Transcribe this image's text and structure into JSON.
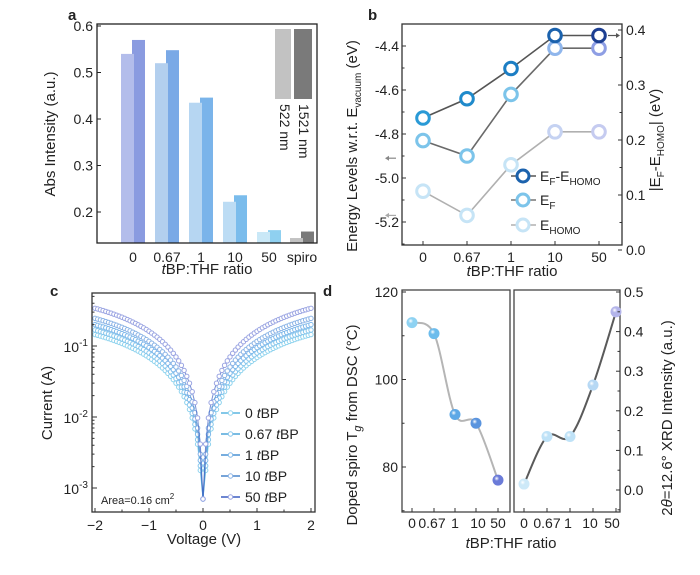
{
  "panels": {
    "a": {
      "label": "a"
    },
    "b": {
      "label": "b"
    },
    "c": {
      "label": "c"
    },
    "d": {
      "label": "d"
    }
  },
  "chart_data": [
    {
      "id": "a",
      "type": "bar",
      "title": "",
      "xlabel_italic": "t",
      "xlabel_rest": "BP:THF ratio",
      "ylabel": "Abs Intensity (a.u.)",
      "categories": [
        "0",
        "0.67",
        "1",
        "10",
        "50",
        "spiro"
      ],
      "ylim": [
        0.13,
        0.6
      ],
      "yticks": [
        "0.2",
        "0.3",
        "0.4",
        "0.5",
        "0.6"
      ],
      "ytick_values": [
        0.2,
        0.3,
        0.4,
        0.5,
        0.6
      ],
      "series": [
        {
          "name": "522 nm",
          "values": [
            0.54,
            0.52,
            0.435,
            0.222,
            0.157,
            0.144
          ],
          "colors": [
            "#b3bdeb",
            "#b3cfee",
            "#b6d6f2",
            "#bcdcf4",
            "#c9e8f7",
            "#c2c2c2"
          ]
        },
        {
          "name": "1521 nm",
          "values": [
            0.57,
            0.548,
            0.446,
            0.236,
            0.161,
            0.158
          ],
          "colors": [
            "#8a9be0",
            "#7aa9e6",
            "#7ab4ea",
            "#7abcec",
            "#8fd0f0",
            "#7a7a7a"
          ]
        }
      ],
      "legend": {
        "placement": "top-right",
        "items": [
          "522 nm",
          "1521 nm"
        ],
        "colors": [
          "#c2c2c2",
          "#7a7a7a"
        ]
      }
    },
    {
      "id": "b",
      "type": "line",
      "xlabel_italic": "t",
      "xlabel_rest": "BP:THF ratio",
      "ylabel_left_main": "Energy Levels w.r.t. E",
      "ylabel_left_sub": "vacuum",
      "ylabel_left_unit": " (eV)",
      "ylabel_right": "|E_F-E_HOMO| (eV)",
      "ylabel_right_parts": {
        "bar": "|",
        "e1": "E",
        "s1": "F",
        "dash": "-E",
        "s2": "HOMO",
        "unit": "| (eV)"
      },
      "categories": [
        "0",
        "0.67",
        "1",
        "10",
        "50"
      ],
      "ylim_left": [
        -5.3,
        -4.3
      ],
      "yticks_left": [
        "-4.4",
        "-4.6",
        "-4.8",
        "-5.0",
        "-5.2"
      ],
      "ytick_left_values": [
        -4.4,
        -4.6,
        -4.8,
        -5.0,
        -5.2
      ],
      "ylim_right": [
        0.0,
        0.4
      ],
      "yticks_right": [
        "0.0",
        "0.1",
        "0.2",
        "0.3",
        "0.4"
      ],
      "ytick_right_values": [
        0.0,
        0.1,
        0.2,
        0.3,
        0.4
      ],
      "series": [
        {
          "name": "E_F-E_HOMO",
          "legend_main": "E",
          "legend_sub1": "F",
          "legend_mid": "-E",
          "legend_sub2": "HOMO",
          "axis": "right",
          "values": [
            0.24,
            0.275,
            0.33,
            0.39,
            0.39
          ],
          "line_color": "#555555",
          "marker_colors": [
            "#2a9ad6",
            "#1f8acb",
            "#1c7ec4",
            "#1b62ad",
            "#1d3f92"
          ]
        },
        {
          "name": "E_F",
          "legend_main": "E",
          "legend_sub1": "F",
          "axis": "left",
          "values": [
            -4.83,
            -4.9,
            -4.62,
            -4.41,
            -4.41
          ],
          "line_color": "#6a6a6a",
          "marker_colors": [
            "#7cc4ea",
            "#7cc4ea",
            "#7cc4ea",
            "#8fb6ec",
            "#8e9ee4"
          ]
        },
        {
          "name": "E_HOMO",
          "legend_main": "E",
          "legend_sub1": "HOMO",
          "axis": "left",
          "values": [
            -5.06,
            -5.17,
            -4.94,
            -4.79,
            -4.79
          ],
          "line_color": "#b0b0b0",
          "marker_colors": [
            "#c6e4f6",
            "#c6e4f6",
            "#c6e4f6",
            "#c5d2f2",
            "#c5cbf0"
          ]
        }
      ],
      "legend": {
        "placement": "bottom-right"
      },
      "arrows": [
        {
          "side": "left",
          "value": -4.91,
          "color": "#888888"
        },
        {
          "side": "left",
          "value": -5.17,
          "color": "#aaaaaa"
        },
        {
          "side": "right",
          "value": 0.39,
          "color": "#555555"
        }
      ]
    },
    {
      "id": "c",
      "type": "scatter",
      "yscale": "log",
      "xlabel": "Voltage (V)",
      "ylabel": "Current (A)",
      "xlim": [
        -2,
        2
      ],
      "xticks": [
        "-2",
        "-1",
        "0",
        "1",
        "2"
      ],
      "xtick_values": [
        -2,
        -1,
        0,
        1,
        2
      ],
      "ylim": [
        0.0004,
        0.5
      ],
      "yticks": [
        {
          "base": "10",
          "exp": "-1"
        },
        {
          "base": "10",
          "exp": "-2"
        },
        {
          "base": "10",
          "exp": "-3"
        }
      ],
      "ytick_values": [
        0.1,
        0.01,
        0.001
      ],
      "annotation": {
        "text": "Area=0.16 cm",
        "sup": "2"
      },
      "series": [
        {
          "name": "0 tBP",
          "label_num": "0 ",
          "label_italic": "t",
          "label_rest": "BP",
          "i_at_2V": 0.145,
          "color": "#8fd3ee",
          "line": "#5bb6e0"
        },
        {
          "name": "0.67 tBP",
          "label_num": "0.67 ",
          "label_italic": "t",
          "label_rest": "BP",
          "i_at_2V": 0.168,
          "color": "#86c6ec",
          "line": "#4fa6da"
        },
        {
          "name": "1 tBP",
          "label_num": "1 ",
          "label_italic": "t",
          "label_rest": "BP",
          "i_at_2V": 0.2,
          "color": "#7fb8ea",
          "line": "#4a92d4"
        },
        {
          "name": "10 tBP",
          "label_num": "10 ",
          "label_italic": "t",
          "label_rest": "BP",
          "i_at_2V": 0.245,
          "color": "#8ab3e6",
          "line": "#4a86cc"
        },
        {
          "name": "50 tBP",
          "label_num": "50 ",
          "label_italic": "t",
          "label_rest": "BP",
          "i_at_2V": 0.34,
          "color": "#9aa4e2",
          "line": "#3d5fc2"
        }
      ],
      "legend": {
        "placement": "bottom-right"
      }
    },
    {
      "id": "d",
      "type": "scatter",
      "xlabel_italic": "t",
      "xlabel_rest": "BP:THF ratio",
      "ylabel_left": "Doped spiro T",
      "ylabel_left_sub": "g",
      "ylabel_left_rest": " from DSC (°C)",
      "ylabel_right_pre": "2",
      "ylabel_right_theta": "θ",
      "ylabel_right_rest": "=12.6° XRD Intensity (a.u.)",
      "categories": [
        "0",
        "0.67",
        "1",
        "10",
        "50"
      ],
      "left": {
        "ylim": [
          70,
          120
        ],
        "yticks": [
          "80",
          "100",
          "120"
        ],
        "ytick_values": [
          80,
          100,
          120
        ],
        "values": [
          113,
          110.5,
          92,
          90,
          77
        ],
        "colors": [
          "#8ed2f2",
          "#6cbcec",
          "#5ea8e6",
          "#5a94de",
          "#6b7bd8"
        ],
        "curve_color": "#b5b5b5"
      },
      "right": {
        "ylim": [
          -0.05,
          0.5
        ],
        "yticks": [
          "0.0",
          "0.1",
          "0.2",
          "0.3",
          "0.4",
          "0.5"
        ],
        "ytick_values": [
          0.0,
          0.1,
          0.2,
          0.3,
          0.4,
          0.5
        ],
        "values": [
          0.015,
          0.135,
          0.135,
          0.265,
          0.45
        ],
        "colors": [
          "#cde9f8",
          "#bfe2f7",
          "#bfe2f7",
          "#b6d8f4",
          "#b3b4ea"
        ],
        "curve_color": "#5a5a5a"
      }
    }
  ]
}
